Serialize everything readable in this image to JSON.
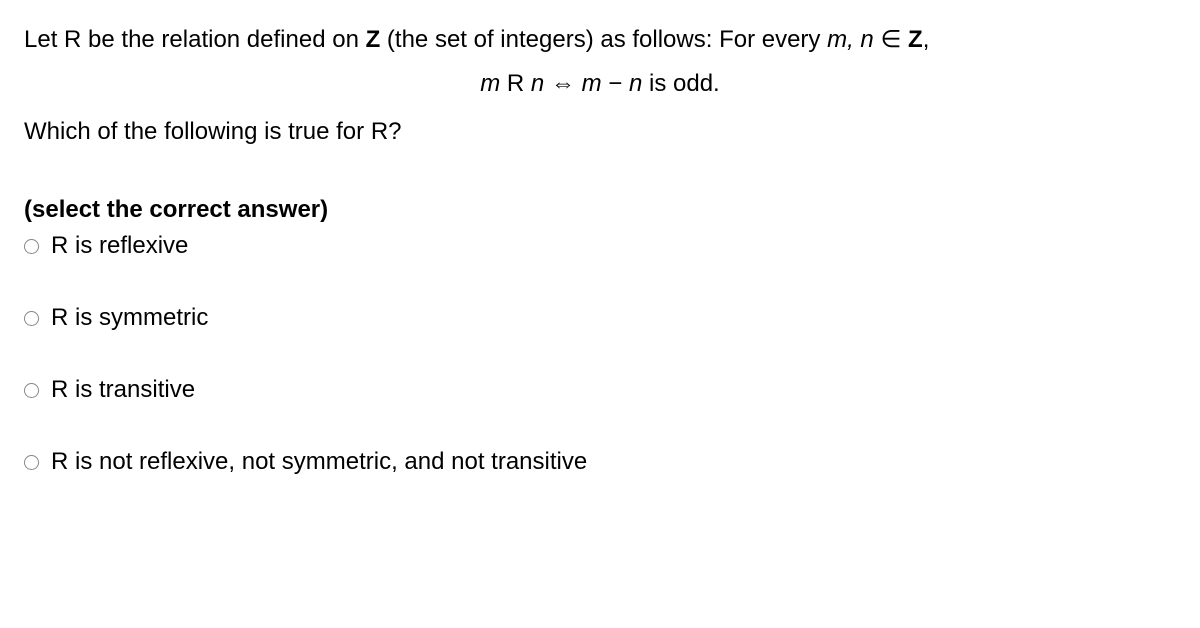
{
  "question": {
    "intro_part1": "Let R be the relation defined on ",
    "intro_z": "Z",
    "intro_part2": " (the set of integers) as follows: For every ",
    "intro_mn": "m, n",
    "intro_in": " ∈ ",
    "intro_z2": "Z",
    "intro_comma": ",",
    "formula_m": "m",
    "formula_r": " R ",
    "formula_n": "n",
    "formula_iff": "  ⇔  ",
    "formula_m2": "m",
    "formula_minus": " − ",
    "formula_n2": "n",
    "formula_odd": " is odd.",
    "followup": "Which of the following is true for R?"
  },
  "instruction": "(select the correct answer)",
  "options": [
    {
      "label": "R is reflexive"
    },
    {
      "label": "R is symmetric"
    },
    {
      "label": "R is transitive"
    },
    {
      "label": "R is not reflexive, not symmetric, and not transitive"
    }
  ],
  "colors": {
    "background": "#ffffff",
    "text": "#000000",
    "radio_border": "#888888"
  },
  "typography": {
    "font_family": "Arial",
    "base_fontsize": 24
  }
}
